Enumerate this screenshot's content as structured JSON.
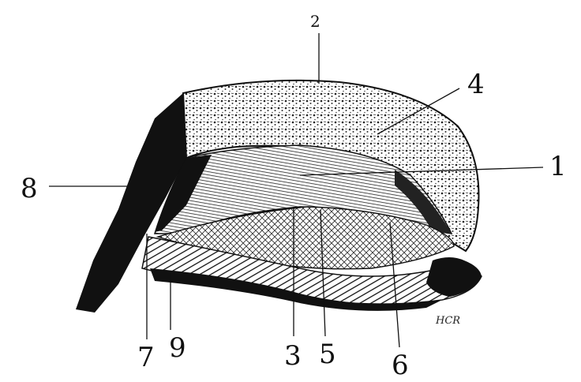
{
  "labels": {
    "l1": "1",
    "l2": "2",
    "l3": "3",
    "l4": "4",
    "l5": "5",
    "l6": "6",
    "l7": "7",
    "l8": "8",
    "l9": "9"
  },
  "signature": "HCR",
  "colors": {
    "ink": "#111111",
    "paper": "#ffffff"
  }
}
